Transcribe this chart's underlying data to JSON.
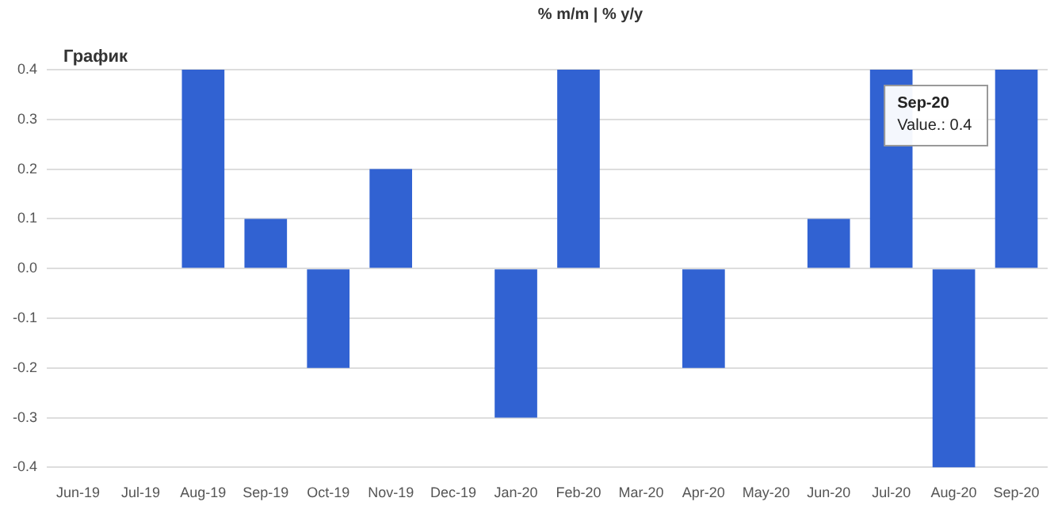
{
  "chart_data": {
    "type": "bar",
    "title": "График",
    "subtitle": "% m/m | % y/y",
    "categories": [
      "Jun-19",
      "Jul-19",
      "Aug-19",
      "Sep-19",
      "Oct-19",
      "Nov-19",
      "Dec-19",
      "Jan-20",
      "Feb-20",
      "Mar-20",
      "Apr-20",
      "May-20",
      "Jun-20",
      "Jul-20",
      "Aug-20",
      "Sep-20"
    ],
    "values": [
      0,
      0,
      0.4,
      0.1,
      -0.2,
      0.2,
      0,
      -0.3,
      0.4,
      0,
      -0.2,
      0,
      0.1,
      0.4,
      -0.4,
      0.4
    ],
    "color": "#3162d2",
    "ylim": [
      -0.4,
      0.4
    ],
    "yticks": [
      -0.4,
      -0.3,
      -0.2,
      -0.1,
      {
        "value": 0,
        "label": "0.0"
      },
      0.1,
      0.2,
      0.3,
      0.4
    ],
    "grid": "y",
    "annotations": [
      "Sep-20",
      "Value.: 0.4"
    ]
  }
}
